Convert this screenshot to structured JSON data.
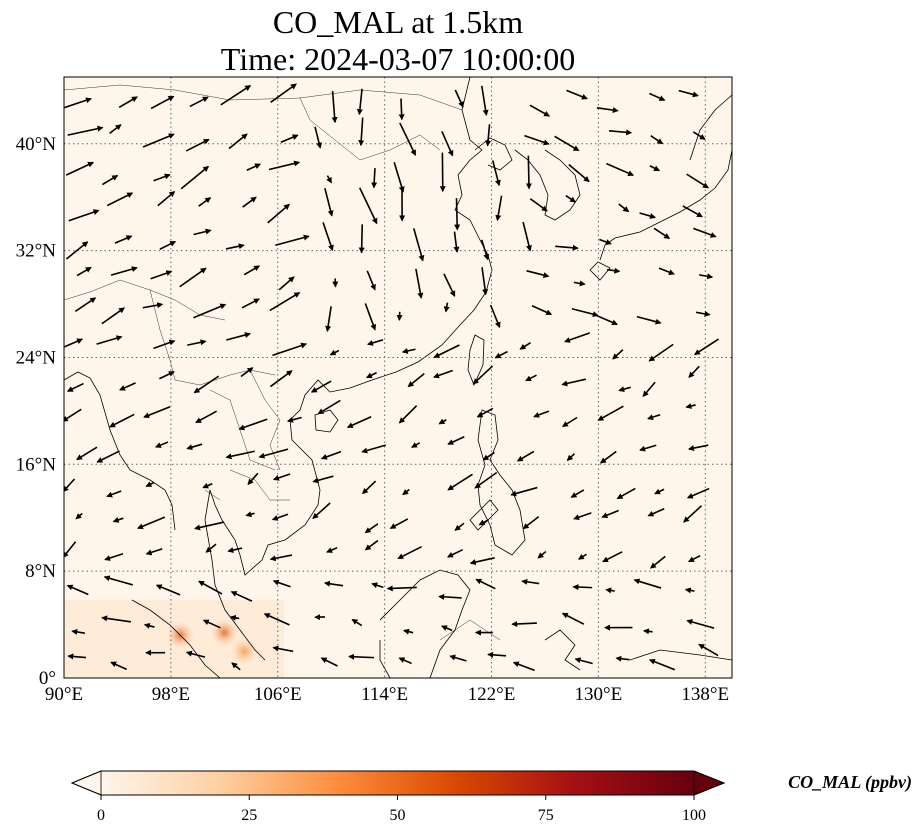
{
  "title": {
    "line1": "CO_MAL at 1.5km",
    "line2": "Time: 2024-03-07 10:00:00"
  },
  "map": {
    "lon_range": [
      90,
      140
    ],
    "lat_range": [
      0,
      45
    ],
    "grid": true,
    "background_color": "#fff5ea",
    "lon_ticks": [
      "90°E",
      "98°E",
      "106°E",
      "114°E",
      "122°E",
      "130°E",
      "138°E"
    ],
    "lat_ticks": [
      "0°",
      "8°N",
      "16°N",
      "24°N",
      "32°N",
      "40°N"
    ]
  },
  "colorbar": {
    "label": "CO_MAL (ppbv)",
    "ticks": [
      "0",
      "25",
      "50",
      "75",
      "100"
    ],
    "range": [
      0,
      100
    ],
    "extend": "both",
    "colors": [
      "#fff5eb",
      "#fdd0a2",
      "#fd8d3c",
      "#d94801",
      "#a50f15",
      "#67000d"
    ]
  },
  "hotspots": [
    {
      "lon": 98.7,
      "lat": 3.2,
      "value": 30
    },
    {
      "lon": 102.0,
      "lat": 3.4,
      "value": 40
    },
    {
      "lon": 103.5,
      "lat": 2.0,
      "value": 20
    }
  ]
}
